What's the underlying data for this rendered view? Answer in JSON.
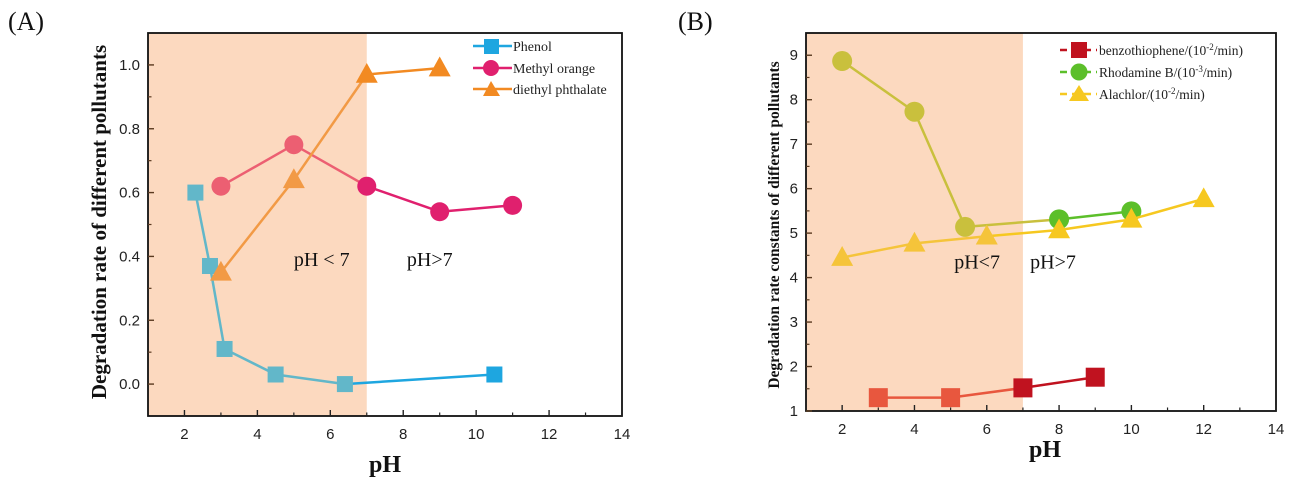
{
  "chart_data": [
    {
      "type": "line",
      "panel_label": "(A)",
      "title": "",
      "xlabel": "pH",
      "ylabel": "Degradation rate of different pollutants",
      "xlim": [
        1,
        14
      ],
      "ylim": [
        -0.1,
        1.1
      ],
      "xticks": [
        2,
        4,
        6,
        8,
        10,
        12,
        14
      ],
      "yticks": [
        0.0,
        0.2,
        0.4,
        0.6,
        0.8,
        1.0
      ],
      "xtick_labels": [
        "2",
        "4",
        "6",
        "8",
        "10",
        "12",
        "14"
      ],
      "ytick_labels": [
        "0.0",
        "0.2",
        "0.4",
        "0.6",
        "0.8",
        "1.0"
      ],
      "grid": false,
      "shaded_region": {
        "x_from": 1,
        "x_to": 7,
        "color": "#fcd9bf"
      },
      "annotations": [
        {
          "text": "pH < 7",
          "x": 5.0,
          "y": 0.37
        },
        {
          "text": "pH>7",
          "x": 8.1,
          "y": 0.37
        }
      ],
      "legend_position": "top-right",
      "series": [
        {
          "name": "Phenol",
          "marker": "square",
          "color": "#1ea6e0",
          "color_in_shade": "#62b7c9",
          "x": [
            2.3,
            2.7,
            3.1,
            4.5,
            6.4,
            10.5
          ],
          "y": [
            0.6,
            0.37,
            0.11,
            0.03,
            0.0,
            0.03
          ]
        },
        {
          "name": "Methyl orange",
          "marker": "circle",
          "color": "#e0206e",
          "color_in_shade": "#ec5f72",
          "x": [
            3,
            5,
            7,
            9,
            11
          ],
          "y": [
            0.62,
            0.75,
            0.62,
            0.54,
            0.56
          ]
        },
        {
          "name": "diethyl phthalate",
          "marker": "triangle",
          "color": "#f28a22",
          "color_in_shade": "#f29a45",
          "x": [
            3,
            5,
            7,
            9
          ],
          "y": [
            0.35,
            0.64,
            0.97,
            0.99
          ]
        }
      ]
    },
    {
      "type": "line",
      "panel_label": "(B)",
      "title": "",
      "xlabel": "pH",
      "ylabel": "Degradation rate constants of different pollutants",
      "xlim": [
        1,
        14
      ],
      "ylim": [
        1,
        9.5
      ],
      "xticks": [
        2,
        4,
        6,
        8,
        10,
        12,
        14
      ],
      "yticks": [
        1,
        2,
        3,
        4,
        5,
        6,
        7,
        8,
        9
      ],
      "xtick_labels": [
        "2",
        "4",
        "6",
        "8",
        "10",
        "12",
        "14"
      ],
      "ytick_labels": [
        "1",
        "2",
        "3",
        "4",
        "5",
        "6",
        "7",
        "8",
        "9"
      ],
      "grid": false,
      "shaded_region": {
        "x_from": 1,
        "x_to": 7,
        "color": "#fcd9bf"
      },
      "annotations": [
        {
          "text": "pH<7",
          "x": 5.1,
          "y": 4.2
        },
        {
          "text": "pH>7",
          "x": 7.2,
          "y": 4.2
        }
      ],
      "legend_position": "top-right",
      "series": [
        {
          "name": "benzothiophene/(10",
          "unit_exp": "-2",
          "unit_tail": "/min)",
          "marker": "square",
          "color": "#c0121f",
          "color_in_shade": "#e8573e",
          "x": [
            3,
            5,
            7,
            9
          ],
          "y": [
            1.3,
            1.3,
            1.52,
            1.76
          ]
        },
        {
          "name": "Rhodamine B/(10",
          "unit_exp": "-3",
          "unit_tail": "/min)",
          "marker": "circle",
          "color": "#5cbf2a",
          "color_in_shade": "#c9c03d",
          "x": [
            2,
            4,
            5.4,
            8,
            10
          ],
          "y": [
            8.87,
            7.73,
            5.14,
            5.31,
            5.49
          ]
        },
        {
          "name": "Alachlor/(10",
          "unit_exp": "-2",
          "unit_tail": "/min)",
          "marker": "triangle",
          "color": "#f6c820",
          "color_in_shade": "#f5c43a",
          "x": [
            2,
            4,
            6,
            8,
            10,
            12
          ],
          "y": [
            4.45,
            4.77,
            4.93,
            5.07,
            5.31,
            5.77
          ]
        }
      ]
    }
  ]
}
